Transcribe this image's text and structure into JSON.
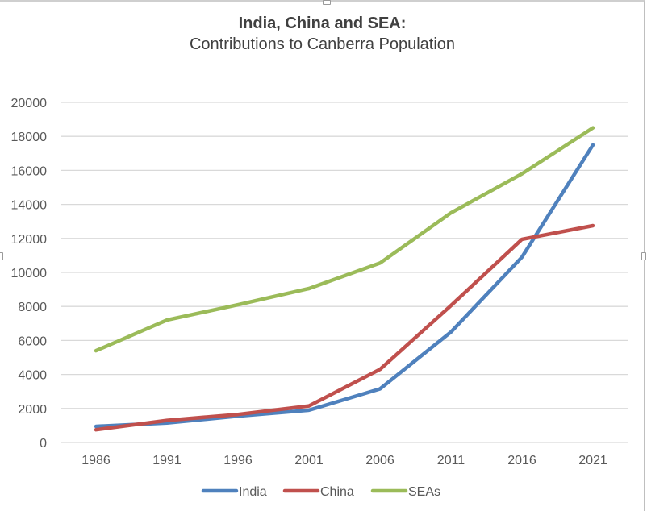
{
  "chart_data": {
    "type": "line",
    "title": "India, China and SEA:",
    "subtitle": "Contributions to Canberra Population",
    "xlabel": "",
    "ylabel": "",
    "categories": [
      "1986",
      "1991",
      "1996",
      "2001",
      "2006",
      "2011",
      "2016",
      "2021"
    ],
    "ylim": [
      0,
      20000
    ],
    "yticks": [
      "0",
      "2000",
      "4000",
      "6000",
      "8000",
      "10000",
      "12000",
      "14000",
      "16000",
      "18000",
      "20000"
    ],
    "ytick_values": [
      0,
      2000,
      4000,
      6000,
      8000,
      10000,
      12000,
      14000,
      16000,
      18000,
      20000
    ],
    "grid": true,
    "legend_position": "bottom",
    "series": [
      {
        "name": "India",
        "color": "#4F81BD",
        "values": [
          950,
          1150,
          1550,
          1900,
          3150,
          6500,
          10900,
          17500
        ]
      },
      {
        "name": "China",
        "color": "#C0504D",
        "values": [
          750,
          1300,
          1650,
          2150,
          4300,
          8050,
          11950,
          12750
        ]
      },
      {
        "name": "SEAs",
        "color": "#9BBB59",
        "values": [
          5400,
          7200,
          8100,
          9050,
          10550,
          13500,
          15800,
          18500
        ]
      }
    ]
  }
}
